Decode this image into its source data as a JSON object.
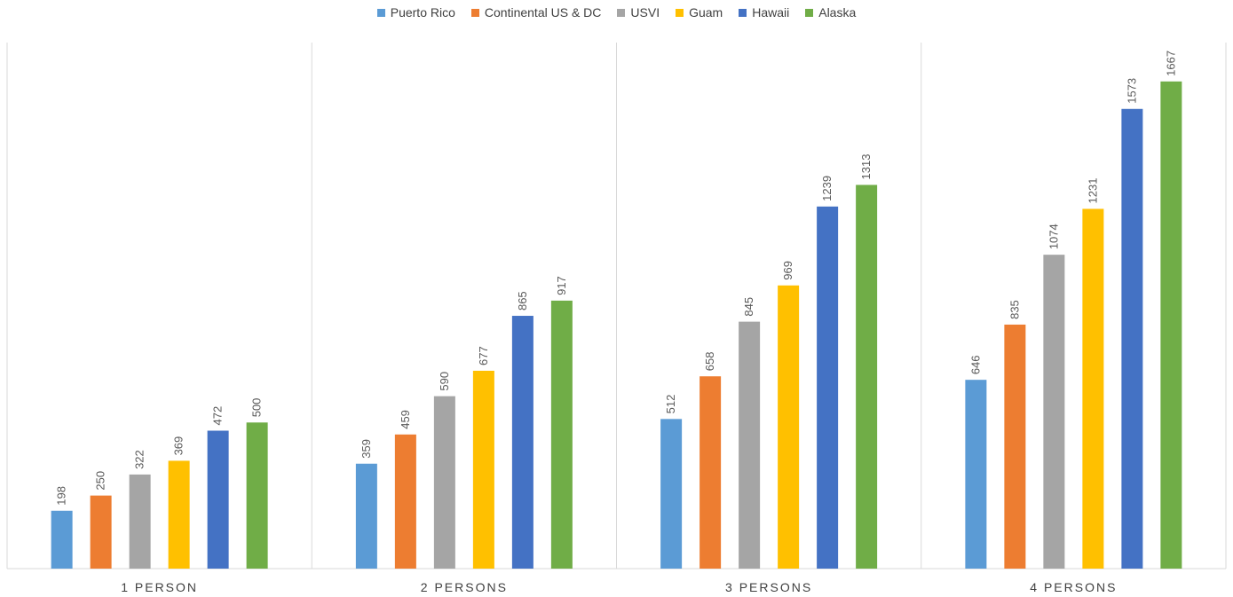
{
  "chart_data": {
    "type": "bar",
    "title": "",
    "xlabel": "",
    "ylabel": "",
    "ylim": [
      0,
      1800
    ],
    "grid": false,
    "legend_position": "top",
    "categories": [
      "1 PERSON",
      "2 PERSONS",
      "3 PERSONS",
      "4 PERSONS"
    ],
    "series": [
      {
        "name": "Puerto Rico",
        "color": "#5b9bd5",
        "values": [
          198,
          359,
          512,
          646
        ]
      },
      {
        "name": "Continental US & DC",
        "color": "#ed7d31",
        "values": [
          250,
          459,
          658,
          835
        ]
      },
      {
        "name": "USVI",
        "color": "#a5a5a5",
        "values": [
          322,
          590,
          845,
          1074
        ]
      },
      {
        "name": "Guam",
        "color": "#ffc000",
        "values": [
          369,
          677,
          969,
          1231
        ]
      },
      {
        "name": "Hawaii",
        "color": "#4472c4",
        "values": [
          472,
          865,
          1239,
          1573
        ]
      },
      {
        "name": "Alaska",
        "color": "#70ad47",
        "values": [
          500,
          917,
          1313,
          1667
        ]
      }
    ]
  }
}
